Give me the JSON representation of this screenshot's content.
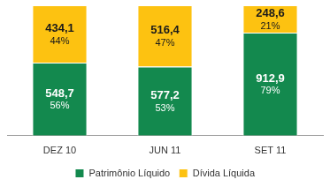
{
  "chart_data": {
    "type": "bar",
    "categories": [
      "DEZ 10",
      "JUN 11",
      "SET 11"
    ],
    "series": [
      {
        "name": "Patrimônio Líquido",
        "color": "#13894e",
        "values": [
          56,
          53,
          79
        ],
        "value_labels": [
          "56%",
          "53%",
          "79%"
        ],
        "amounts": [
          548.7,
          577.2,
          912.9
        ],
        "amount_labels": [
          "548,7",
          "577,2",
          "912,9"
        ]
      },
      {
        "name": "Dívida Líquida",
        "color": "#fdc211",
        "values": [
          44,
          47,
          21
        ],
        "value_labels": [
          "44%",
          "47%",
          "21%"
        ],
        "amounts": [
          434.1,
          516.4,
          248.6
        ],
        "amount_labels": [
          "434,1",
          "516,4",
          "248,6"
        ]
      }
    ],
    "stacked": true,
    "data_labels": true,
    "ylim": [
      0,
      100
    ],
    "tick_labels": "x",
    "grid": false,
    "legend": "bottom"
  }
}
